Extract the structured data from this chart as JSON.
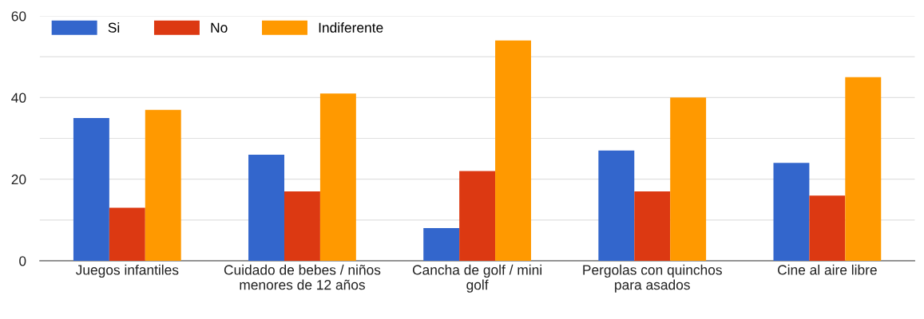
{
  "chart_data": {
    "type": "bar",
    "categories": [
      "Juegos infantiles",
      "Cuidado de bebes / niños menores de 12 años",
      "Cancha de golf / mini golf",
      "Pergolas con quinchos para asados",
      "Cine al aire libre"
    ],
    "series": [
      {
        "name": "Si",
        "color": "#3366cc",
        "values": [
          35,
          26,
          8,
          27,
          24
        ]
      },
      {
        "name": "No",
        "color": "#dc3912",
        "values": [
          13,
          17,
          22,
          17,
          16
        ]
      },
      {
        "name": "Indiferente",
        "color": "#ff9900",
        "values": [
          37,
          41,
          54,
          40,
          45
        ]
      }
    ],
    "ylim": [
      0,
      60
    ],
    "yticks": [
      0,
      {
        "value": 10,
        "label": null
      },
      20,
      {
        "value": 30,
        "label": null
      },
      40,
      {
        "value": 50,
        "label": null
      },
      60
    ],
    "grid": "y",
    "legend": "top left"
  }
}
